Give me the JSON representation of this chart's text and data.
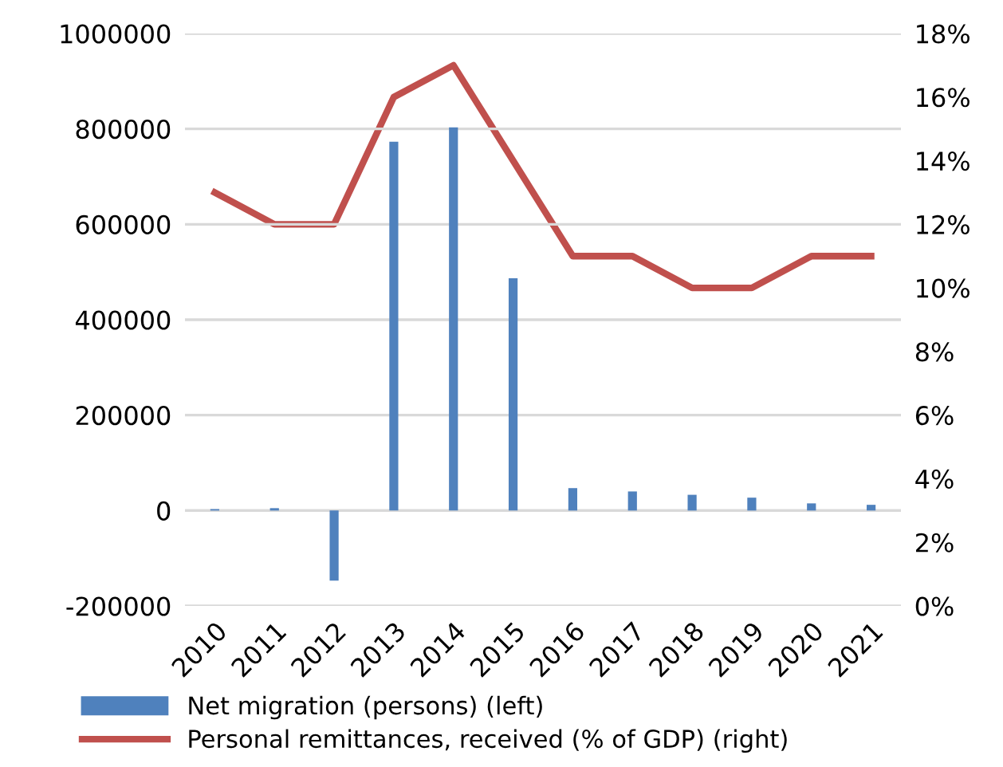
{
  "chart_data": {
    "type": "bar",
    "categories": [
      "2010",
      "2011",
      "2012",
      "2013",
      "2014",
      "2015",
      "2016",
      "2017",
      "2018",
      "2019",
      "2020",
      "2021"
    ],
    "series": [
      {
        "name": "Net migration (persons) (left)",
        "color": "#4f81bd",
        "values": [
          3000,
          5000,
          -147000,
          773000,
          803000,
          487000,
          47000,
          40000,
          33000,
          27000,
          15000,
          12000
        ]
      },
      {
        "name": "Personal remittances, received (% of GDP) (right)",
        "type": "line",
        "axis": "y2",
        "color": "#c0504d",
        "values": [
          13,
          12,
          12,
          16,
          17,
          14,
          11,
          11,
          10,
          10,
          11,
          11
        ]
      }
    ],
    "ylim": [
      -200000,
      1000000
    ],
    "yticks": [
      -200000,
      0,
      200000,
      400000,
      600000,
      800000,
      1000000
    ],
    "y2lim": [
      0,
      18
    ],
    "y2ticks": [
      {
        "value": 0,
        "label": "0%"
      },
      {
        "value": 2,
        "label": "2%"
      },
      {
        "value": 4,
        "label": "4%"
      },
      {
        "value": 6,
        "label": "6%"
      },
      {
        "value": 8,
        "label": "8%"
      },
      {
        "value": 10,
        "label": "10%"
      },
      {
        "value": 12,
        "label": "12%"
      },
      {
        "value": 14,
        "label": "14%"
      },
      {
        "value": 16,
        "label": "16%"
      },
      {
        "value": 18,
        "label": "18%"
      }
    ],
    "grid": "y",
    "legend": "bottom",
    "marker": "none"
  }
}
